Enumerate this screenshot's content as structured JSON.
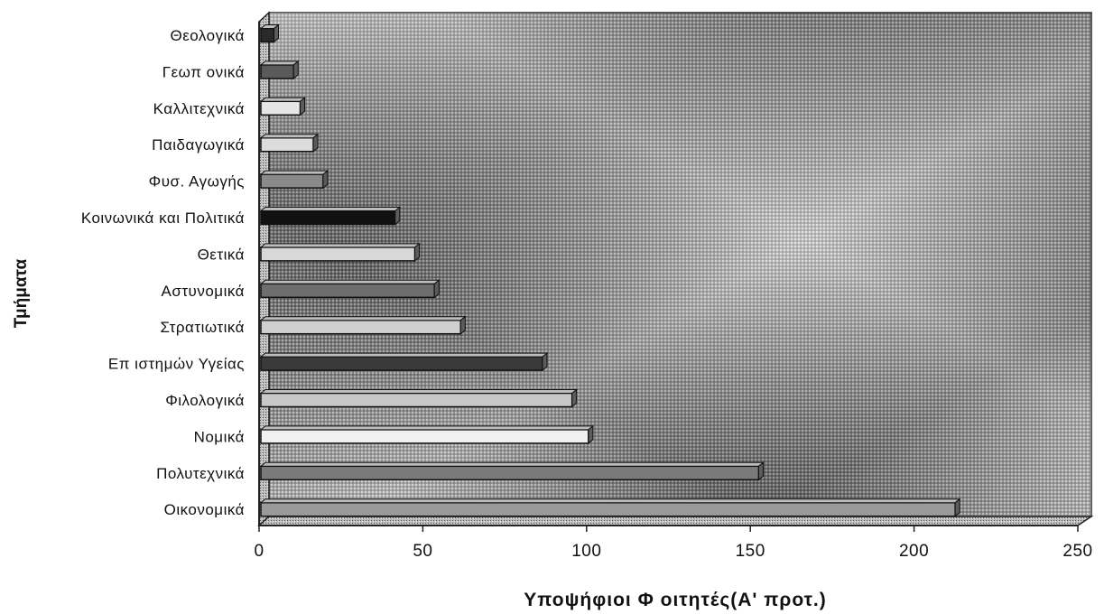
{
  "chart_data": {
    "type": "bar",
    "orientation": "horizontal",
    "categories": [
      "Θεολογικά",
      "Γεωπ ονικά",
      "Καλλιτεχνικά",
      "Παιδαγωγικά",
      "Φυσ. Αγωγής",
      "Κοινωνικά και Πολιτικά",
      "Θετικά",
      "Αστυνομικά",
      "Στρατιωτικά",
      "Επ ιστημών Υγείας",
      "Φιλολογικά",
      "Νομικά",
      "Πολυτεχνικά",
      "Οικονομικά"
    ],
    "values": [
      4,
      10,
      12,
      16,
      19,
      41,
      47,
      53,
      61,
      86,
      95,
      100,
      152,
      212
    ],
    "x_ticks": [
      "0",
      "50",
      "100",
      "150",
      "200",
      "250"
    ],
    "xlim": [
      0,
      250
    ],
    "xlabel": "Υποψήφιοι Φ οιτητές(Α' προτ.)",
    "ylabel": "Τμήματα",
    "grid": false,
    "style": "3d-textured-background"
  }
}
